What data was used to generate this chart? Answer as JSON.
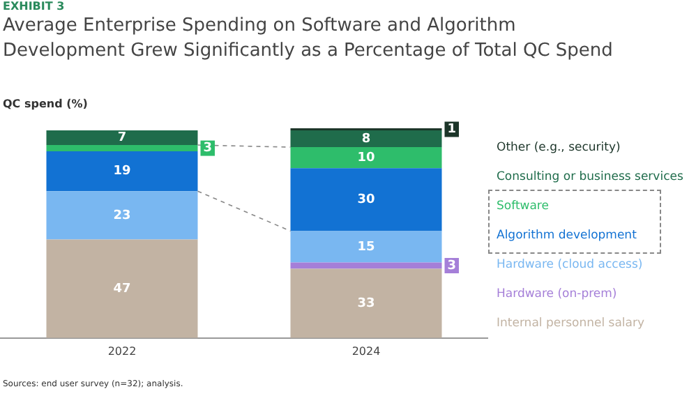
{
  "chart_data": {
    "type": "bar",
    "stacked": true,
    "title": "Average Enterprise Spending on Software and Algorithm Development Grew Significantly as a Percentage of Total QC Spend",
    "ylabel": "QC spend (%)",
    "annotations": [
      "EXHIBIT 3",
      "Sources: end user survey (n=32); analysis."
    ],
    "categories": [
      "2022",
      "2024"
    ],
    "data_labels": true,
    "legend": "right",
    "grid": false,
    "series": [
      {
        "name": "Internal personnel salary",
        "color": "#c2b3a3",
        "values": [
          47,
          33
        ]
      },
      {
        "name": "Hardware (on-prem)",
        "color": "#a57fd8",
        "values": [
          null,
          3
        ]
      },
      {
        "name": "Hardware (cloud access)",
        "color": "#79b7f1",
        "values": [
          23,
          15
        ]
      },
      {
        "name": "Algorithm development",
        "color": "#1272d3",
        "values": [
          19,
          30
        ]
      },
      {
        "name": "Software",
        "color": "#2ebd6b",
        "values": [
          3,
          10
        ]
      },
      {
        "name": "Consulting or business services",
        "color": "#1f6c4b",
        "values": [
          7,
          8
        ]
      },
      {
        "name": "Other (e.g., security)",
        "color": "#1c3529",
        "values": [
          null,
          1
        ]
      }
    ]
  }
}
